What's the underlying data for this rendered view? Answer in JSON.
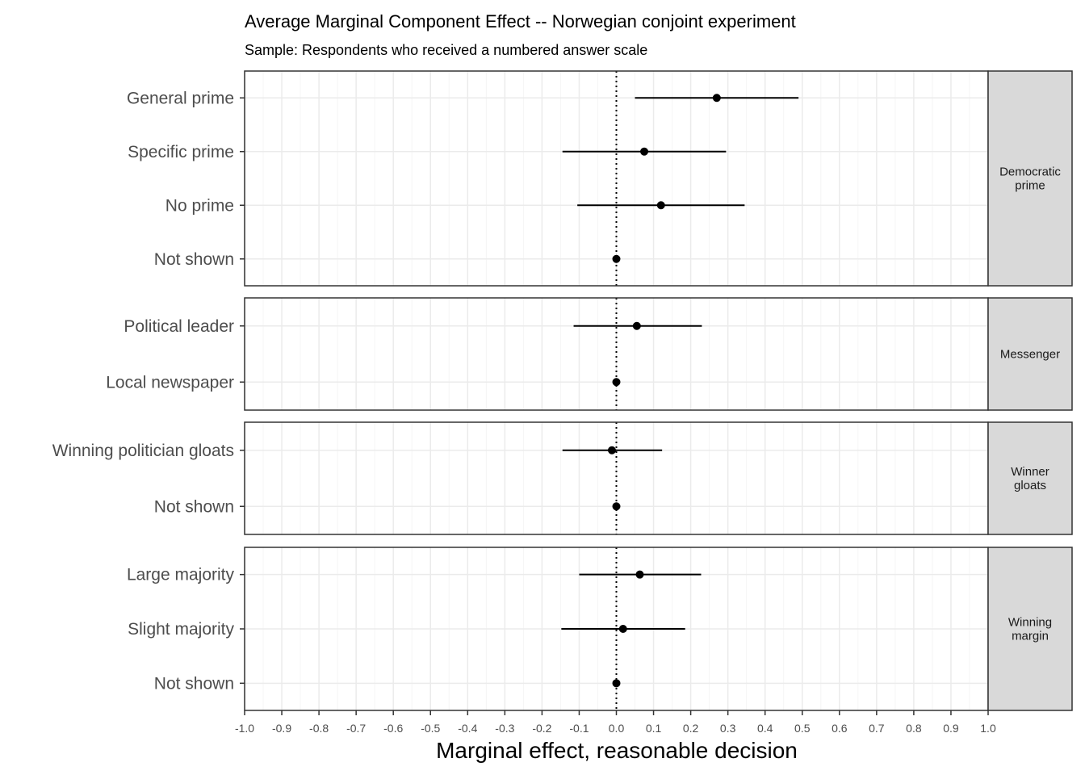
{
  "chart_data": {
    "type": "scatter",
    "title": "Average Marginal Component Effect -- Norwegian conjoint experiment",
    "subtitle": "Sample: Respondents who received a numbered answer scale",
    "xlabel": "Marginal effect, reasonable decision",
    "xlim": [
      -1.0,
      1.0
    ],
    "x_ticks": [
      "-1.0",
      "-0.9",
      "-0.8",
      "-0.7",
      "-0.6",
      "-0.5",
      "-0.4",
      "-0.3",
      "-0.2",
      "-0.1",
      "0.0",
      "0.1",
      "0.2",
      "0.3",
      "0.4",
      "0.5",
      "0.6",
      "0.7",
      "0.8",
      "0.9",
      "1.0"
    ],
    "reference_line": 0,
    "grid": true,
    "panels": [
      {
        "strip": [
          "Democratic",
          "prime"
        ],
        "rows": [
          {
            "label": "General prime",
            "estimate": 0.27,
            "ci": [
              0.05,
              0.49
            ]
          },
          {
            "label": "Specific prime",
            "estimate": 0.075,
            "ci": [
              -0.145,
              0.295
            ]
          },
          {
            "label": "No prime",
            "estimate": 0.12,
            "ci": [
              -0.105,
              0.345
            ]
          },
          {
            "label": "Not shown",
            "estimate": 0.0,
            "ci": [
              0.0,
              0.0
            ]
          }
        ]
      },
      {
        "strip": [
          "Messenger"
        ],
        "rows": [
          {
            "label": "Political leader",
            "estimate": 0.055,
            "ci": [
              -0.115,
              0.23
            ]
          },
          {
            "label": "Local newspaper",
            "estimate": 0.0,
            "ci": [
              0.0,
              0.0
            ]
          }
        ]
      },
      {
        "strip": [
          "Winner",
          "gloats"
        ],
        "rows": [
          {
            "label": "Winning politician gloats",
            "estimate": -0.012,
            "ci": [
              -0.145,
              0.123
            ]
          },
          {
            "label": "Not shown",
            "estimate": 0.0,
            "ci": [
              0.0,
              0.0
            ]
          }
        ]
      },
      {
        "strip": [
          "Winning",
          "margin"
        ],
        "rows": [
          {
            "label": "Large majority",
            "estimate": 0.063,
            "ci": [
              -0.1,
              0.228
            ]
          },
          {
            "label": "Slight majority",
            "estimate": 0.018,
            "ci": [
              -0.148,
              0.185
            ]
          },
          {
            "label": "Not shown",
            "estimate": 0.0,
            "ci": [
              0.0,
              0.0
            ]
          }
        ]
      }
    ],
    "colors": {
      "point": "#000000",
      "panel_border": "#333333",
      "grid_major": "#ebebeb",
      "grid_minor": "#f5f5f5",
      "strip_fill": "#d9d9d9"
    }
  }
}
